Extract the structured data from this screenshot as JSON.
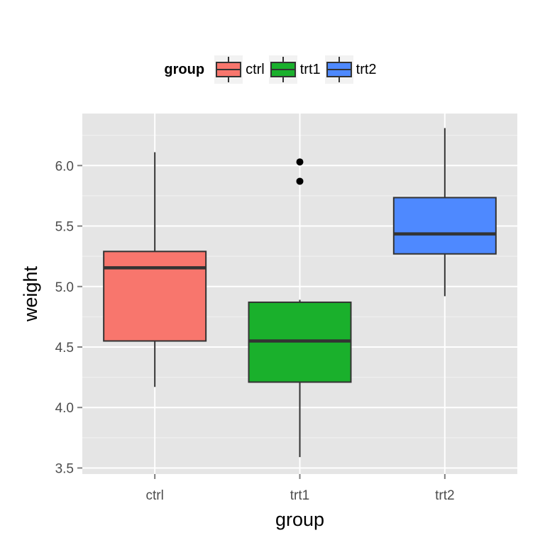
{
  "chart_data": {
    "type": "boxplot",
    "xlabel": "group",
    "ylabel": "weight",
    "ylim": [
      3.45,
      6.43
    ],
    "yticks": [
      3.5,
      4.0,
      4.5,
      5.0,
      5.5,
      6.0
    ],
    "ytick_labels": [
      "3.5",
      "4.0",
      "4.5",
      "5.0",
      "5.5",
      "6.0"
    ],
    "categories": [
      "ctrl",
      "trt1",
      "trt2"
    ],
    "grid": true,
    "legend": {
      "title": "group",
      "placement": "top",
      "entries": [
        "ctrl",
        "trt1",
        "trt2"
      ]
    },
    "series": [
      {
        "category": "ctrl",
        "color": "#F8766D",
        "whisker_low": 4.17,
        "q1": 4.55,
        "median": 5.155,
        "q3": 5.29,
        "whisker_high": 6.11,
        "outliers": []
      },
      {
        "category": "trt1",
        "color": "#1AB02C",
        "whisker_low": 3.59,
        "q1": 4.21,
        "median": 4.55,
        "q3": 4.87,
        "whisker_high": 4.89,
        "outliers": [
          5.87,
          6.03
        ]
      },
      {
        "category": "trt2",
        "color": "#4E89FF",
        "whisker_low": 4.92,
        "q1": 5.27,
        "median": 5.435,
        "q3": 5.735,
        "whisker_high": 6.31,
        "outliers": []
      }
    ]
  }
}
